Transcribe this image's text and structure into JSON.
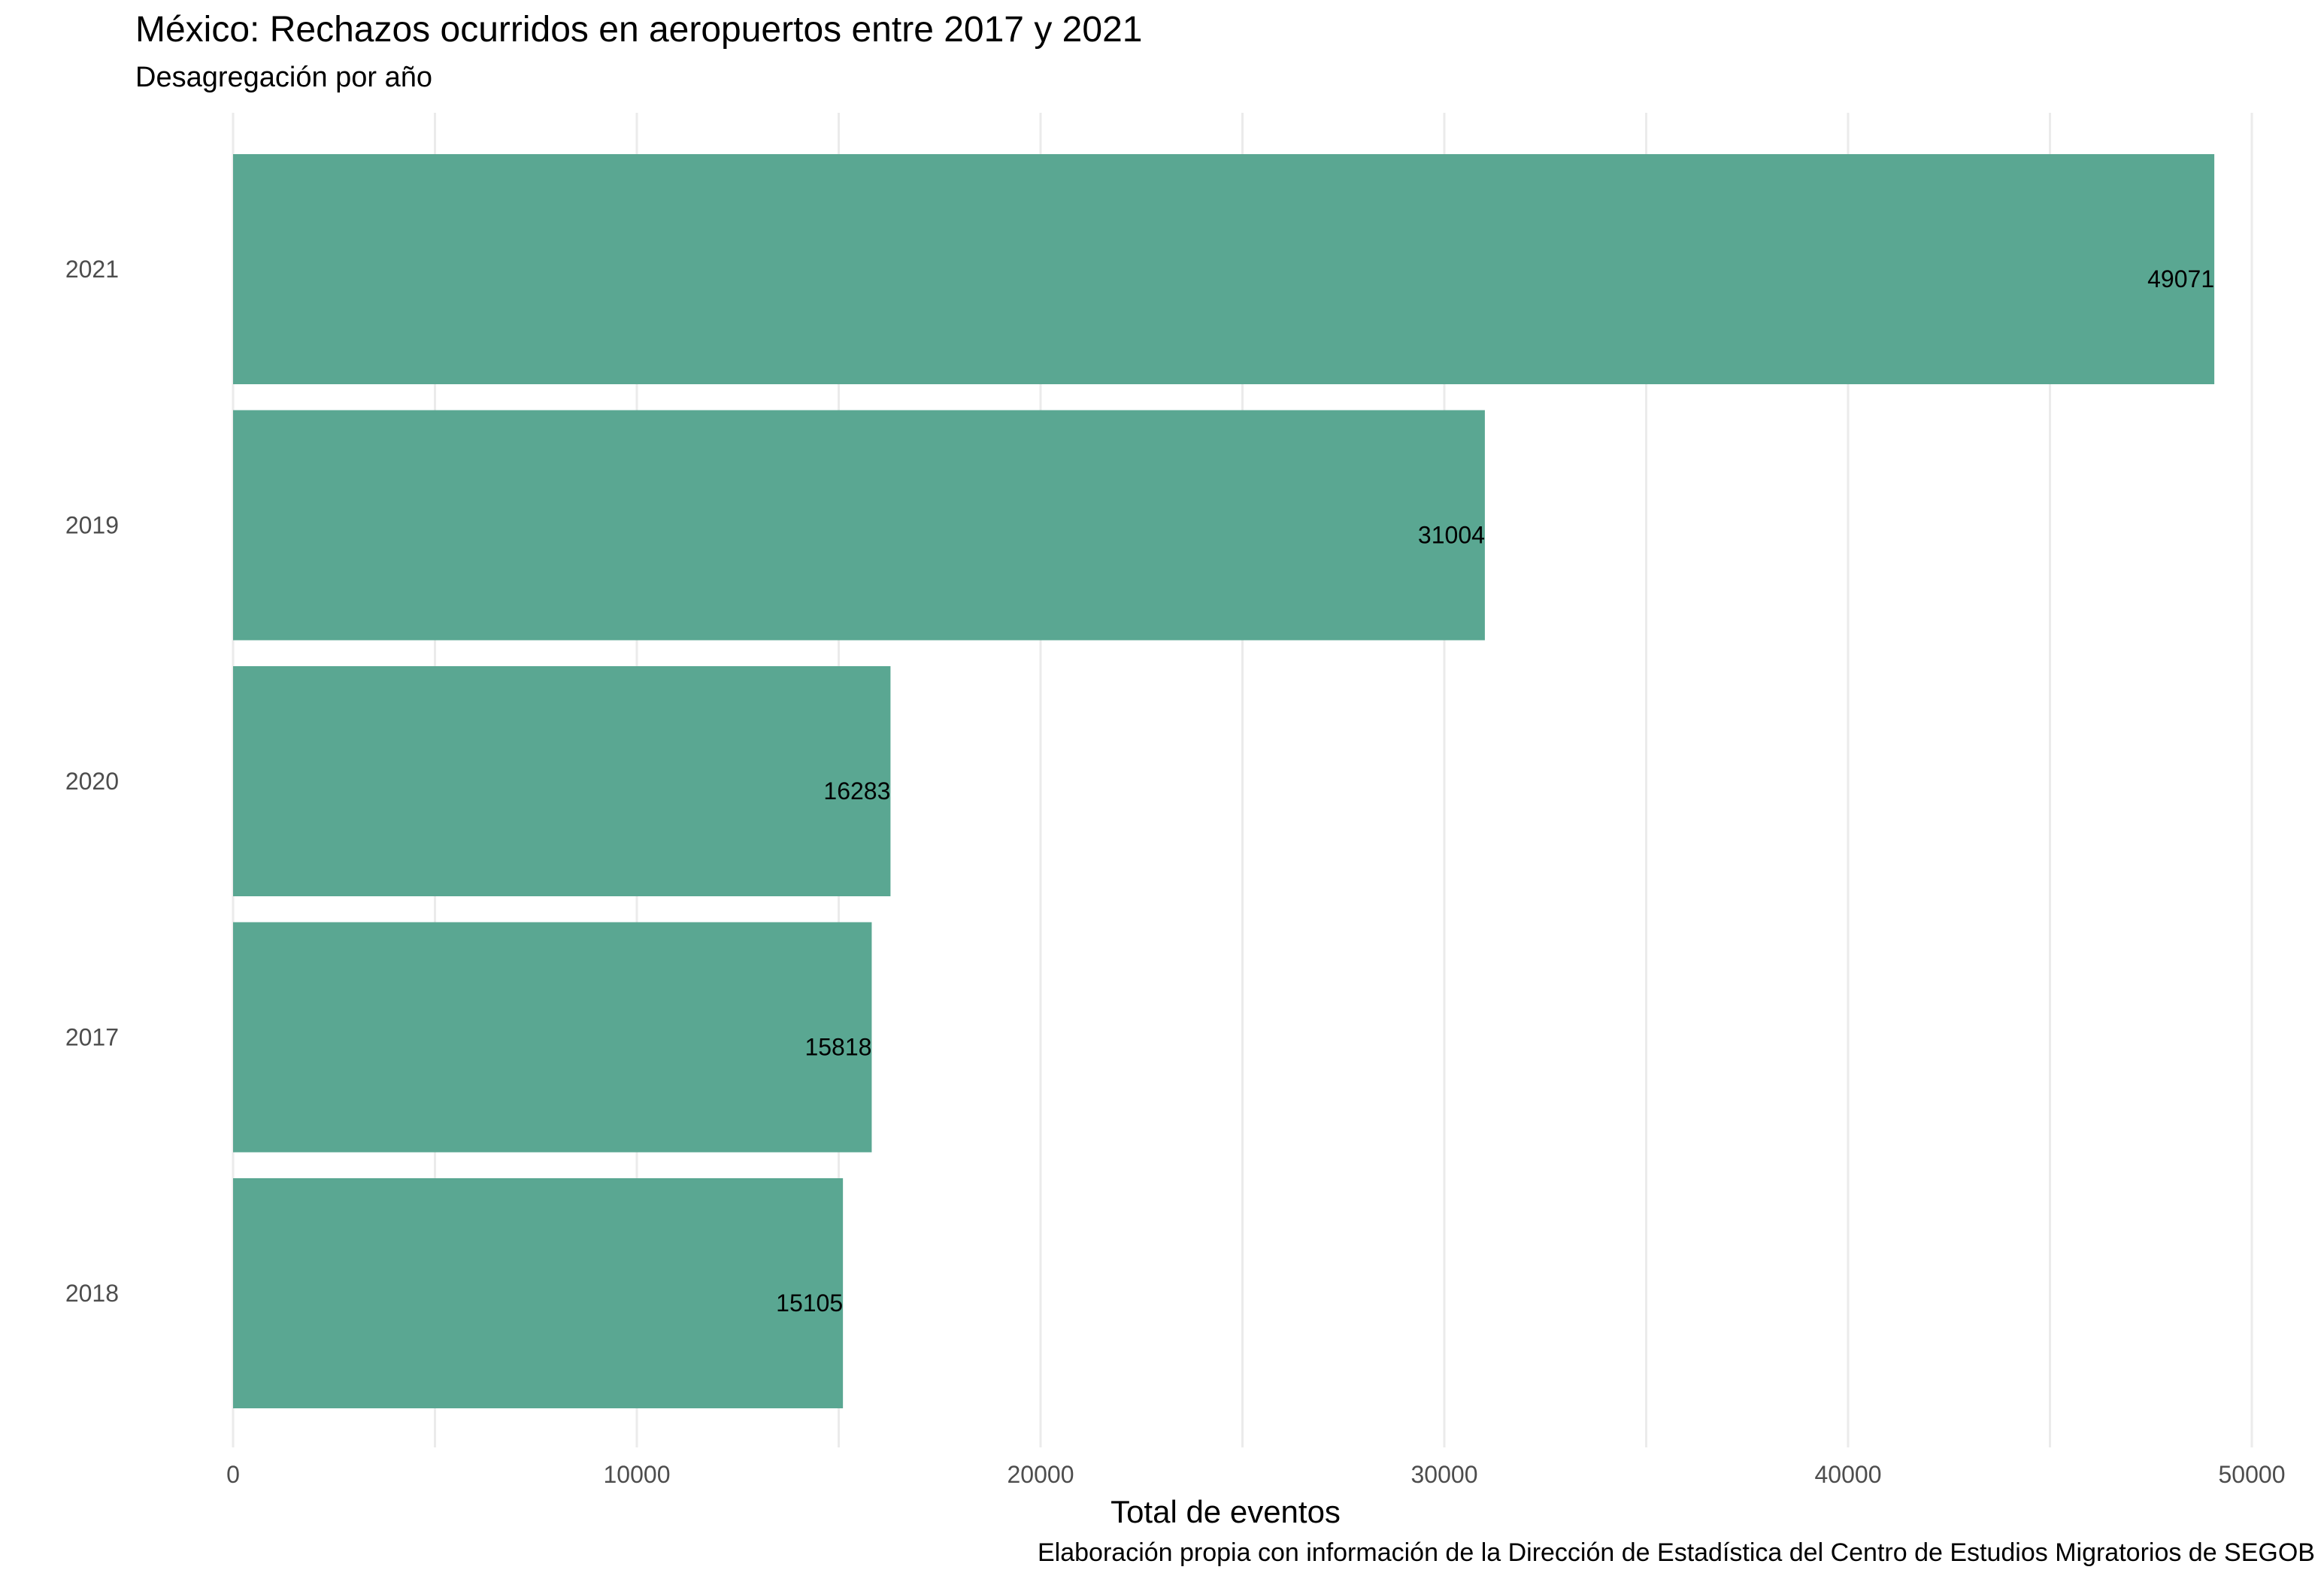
{
  "chart_data": {
    "type": "bar",
    "orientation": "horizontal",
    "title": "México: Rechazos ocurridos en aeropuertos entre 2017 y 2021",
    "subtitle": "Desagregación por año",
    "xlabel": "Total de eventos",
    "ylabel": "",
    "caption": "Elaboración propia con información de la Dirección de Estadística del Centro de Estudios Migratorios de SEGOB",
    "categories": [
      "2021",
      "2019",
      "2020",
      "2017",
      "2018"
    ],
    "values": [
      49071,
      31004,
      16283,
      15818,
      15105
    ],
    "data_labels": [
      "49071",
      "31004",
      "16283",
      "15818",
      "15105"
    ],
    "xlim": [
      0,
      50000
    ],
    "xticks": [
      0,
      10000,
      20000,
      30000,
      40000,
      50000
    ],
    "xtick_labels": [
      "0",
      "10000",
      "20000",
      "30000",
      "40000",
      "50000"
    ],
    "grid": true,
    "legend": "none",
    "bar_color": "#5aa792",
    "grid_color": "#ebebeb"
  }
}
